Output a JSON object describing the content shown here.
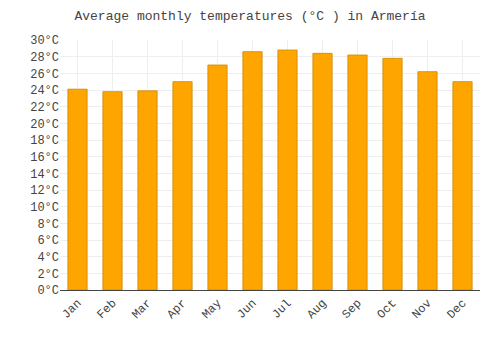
{
  "chart_data": {
    "type": "bar",
    "title": "Average monthly temperatures (°C ) in Armería",
    "categories": [
      "Jan",
      "Feb",
      "Mar",
      "Apr",
      "May",
      "Jun",
      "Jul",
      "Aug",
      "Sep",
      "Oct",
      "Nov",
      "Dec"
    ],
    "values": [
      24.1,
      23.8,
      23.9,
      25.0,
      27.0,
      28.6,
      28.8,
      28.4,
      28.2,
      27.8,
      26.2,
      25.0
    ],
    "color": "#FFA500",
    "ylim": [
      0,
      30
    ],
    "yticks": [
      {
        "value": 0,
        "label": "0°C"
      },
      {
        "value": 2,
        "label": "2°C"
      },
      {
        "value": 4,
        "label": "4°C"
      },
      {
        "value": 6,
        "label": "6°C"
      },
      {
        "value": 8,
        "label": "8°C"
      },
      {
        "value": 10,
        "label": "10°C"
      },
      {
        "value": 12,
        "label": "12°C"
      },
      {
        "value": 14,
        "label": "14°C"
      },
      {
        "value": 16,
        "label": "16°C"
      },
      {
        "value": 18,
        "label": "18°C"
      },
      {
        "value": 20,
        "label": "20°C"
      },
      {
        "value": 22,
        "label": "22°C"
      },
      {
        "value": 24,
        "label": "24°C"
      },
      {
        "value": 26,
        "label": "26°C"
      },
      {
        "value": 28,
        "label": "28°C"
      },
      {
        "value": 30,
        "label": "30°C"
      }
    ],
    "grid": true
  }
}
